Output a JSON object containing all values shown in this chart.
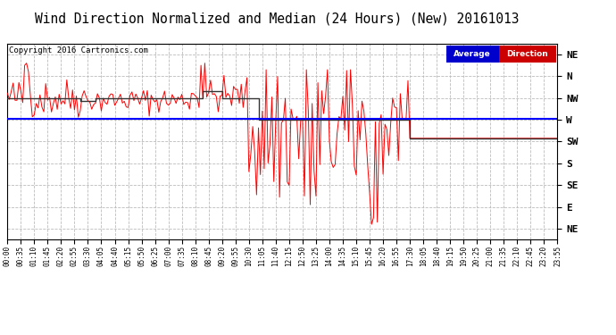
{
  "title": "Wind Direction Normalized and Median (24 Hours) (New) 20161013",
  "copyright": "Copyright 2016 Cartronics.com",
  "background_color": "#ffffff",
  "plot_bg_color": "#ffffff",
  "ytick_labels": [
    "NE",
    "N",
    "NW",
    "W",
    "SW",
    "S",
    "SE",
    "E",
    "NE"
  ],
  "ytick_values": [
    9,
    8,
    7,
    6,
    5,
    4,
    3,
    2,
    1
  ],
  "y_min": 0.5,
  "y_max": 9.5,
  "avg_direction_value": 6.05,
  "legend_label_avg": "Average",
  "legend_label_dir": "Direction",
  "legend_avg_bg": "#0000cc",
  "legend_dir_bg": "#cc0000",
  "line_color_red": "#ff0000",
  "line_color_blue": "#0000ff",
  "median_color": "#333333",
  "grid_color": "#bbbbbb",
  "grid_style": "--",
  "title_fontsize": 10.5,
  "copyright_fontsize": 6.5,
  "tick_fontsize": 8,
  "xtick_fontsize": 5.5,
  "n_points": 288,
  "xtick_step": 7
}
